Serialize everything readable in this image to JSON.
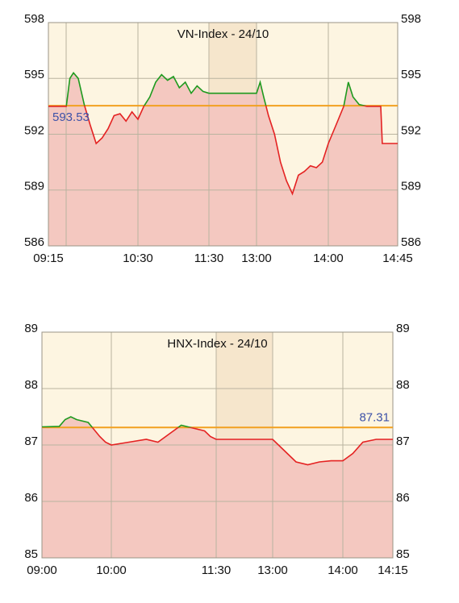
{
  "chart_data": [
    {
      "type": "line",
      "title": "VN-Index - 24/10",
      "x": [
        "09:15",
        "09:30",
        "09:33",
        "09:36",
        "09:40",
        "09:45",
        "09:50",
        "09:55",
        "10:00",
        "10:05",
        "10:10",
        "10:15",
        "10:20",
        "10:25",
        "10:30",
        "10:35",
        "10:40",
        "10:45",
        "10:50",
        "10:55",
        "11:00",
        "11:05",
        "11:10",
        "11:15",
        "11:20",
        "11:25",
        "11:30",
        "13:00",
        "13:03",
        "13:06",
        "13:10",
        "13:15",
        "13:20",
        "13:25",
        "13:30",
        "13:35",
        "13:40",
        "13:45",
        "13:50",
        "13:55",
        "14:00",
        "14:05",
        "14:10",
        "14:13",
        "14:16",
        "14:20",
        "14:25",
        "14:34",
        "14:35",
        "14:45"
      ],
      "values": [
        593.5,
        593.5,
        595.0,
        595.3,
        595.0,
        593.6,
        592.5,
        591.5,
        591.8,
        592.3,
        593.0,
        593.1,
        592.7,
        593.2,
        592.8,
        593.5,
        594.0,
        594.8,
        595.2,
        594.9,
        595.1,
        594.5,
        594.8,
        594.2,
        594.6,
        594.3,
        594.2,
        594.2,
        594.8,
        594.0,
        593.0,
        592.0,
        590.5,
        589.5,
        588.8,
        589.8,
        590.0,
        590.3,
        590.2,
        590.5,
        591.5,
        592.5,
        593.5,
        594.8,
        594.0,
        593.6,
        593.5,
        593.5,
        591.5,
        591.5
      ],
      "reference": 593.53,
      "xticks": [
        "09:15",
        "10:30",
        "11:30",
        "13:00",
        "14:00",
        "14:45"
      ],
      "ylim": [
        586,
        598
      ],
      "yticks": [
        586,
        589,
        592,
        595,
        598
      ],
      "color_up": "#1e9a1e",
      "color_down": "#e42222",
      "fill_color": "#f4c8c0",
      "ref_color": "#f2a020",
      "background": "#fdf5e1"
    },
    {
      "type": "line",
      "title": "HNX-Index - 24/10",
      "x": [
        "09:00",
        "09:15",
        "09:20",
        "09:25",
        "09:30",
        "09:40",
        "09:50",
        "09:55",
        "10:00",
        "10:15",
        "10:30",
        "10:40",
        "10:50",
        "11:00",
        "11:10",
        "11:20",
        "11:25",
        "11:30",
        "13:00",
        "13:10",
        "13:20",
        "13:30",
        "13:40",
        "13:50",
        "14:00",
        "14:03",
        "14:06",
        "14:10",
        "14:15"
      ],
      "values": [
        87.32,
        87.33,
        87.45,
        87.5,
        87.45,
        87.4,
        87.15,
        87.05,
        87.0,
        87.05,
        87.1,
        87.05,
        87.2,
        87.35,
        87.3,
        87.25,
        87.15,
        87.1,
        87.1,
        86.9,
        86.7,
        86.65,
        86.7,
        86.72,
        86.72,
        86.85,
        87.05,
        87.1,
        87.1
      ],
      "reference": 87.31,
      "xticks": [
        "09:00",
        "10:00",
        "11:30",
        "13:00",
        "14:00",
        "14:15"
      ],
      "ylim": [
        85,
        89
      ],
      "yticks": [
        85,
        86,
        87,
        88,
        89
      ],
      "color_up": "#1e9a1e",
      "color_down": "#e42222",
      "fill_color": "#f4c8c0",
      "ref_color": "#f2a020",
      "background": "#fdf5e1"
    }
  ]
}
